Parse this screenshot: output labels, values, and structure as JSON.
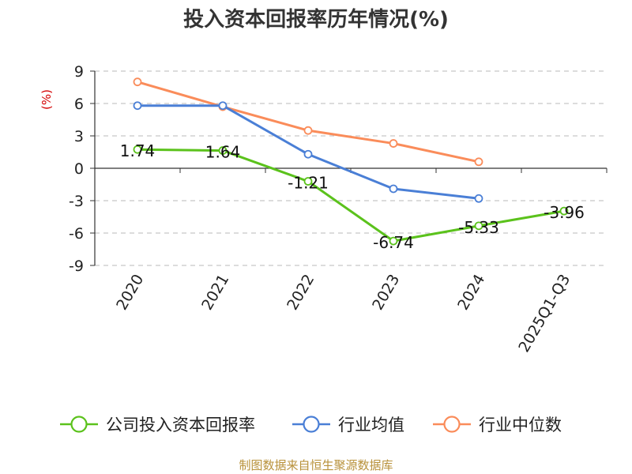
{
  "chart_data": {
    "type": "line",
    "title": "投入资本回报率历年情况(%)",
    "ylabel": "(%)",
    "xlabel": "",
    "categories": [
      "2020",
      "2021",
      "2022",
      "2023",
      "2024",
      "2025Q1-Q3"
    ],
    "ylim": [
      -9,
      9
    ],
    "yticks": [
      9,
      6,
      3,
      0,
      -3,
      -6,
      -9
    ],
    "ytick_labels": [
      "9",
      "6",
      "3",
      "0",
      "-3",
      "-6",
      "-9"
    ],
    "grid": true,
    "legend_position": "bottom",
    "series": [
      {
        "name": "公司投入资本回报率",
        "color": "#5bc21c",
        "values": [
          1.74,
          1.64,
          -1.21,
          -6.74,
          -5.33,
          -3.96
        ],
        "labels": [
          "1.74",
          "1.64",
          "-1.21",
          "-6.74",
          "-5.33",
          "-3.96"
        ]
      },
      {
        "name": "行业均值",
        "color": "#4a7fd6",
        "values": [
          5.8,
          5.8,
          1.3,
          -1.9,
          -2.8,
          null
        ]
      },
      {
        "name": "行业中位数",
        "color": "#fa8c5a",
        "values": [
          8.0,
          5.7,
          3.5,
          2.3,
          0.6,
          null
        ]
      }
    ]
  },
  "footer": {
    "source": "制图数据来自恒生聚源数据库"
  }
}
